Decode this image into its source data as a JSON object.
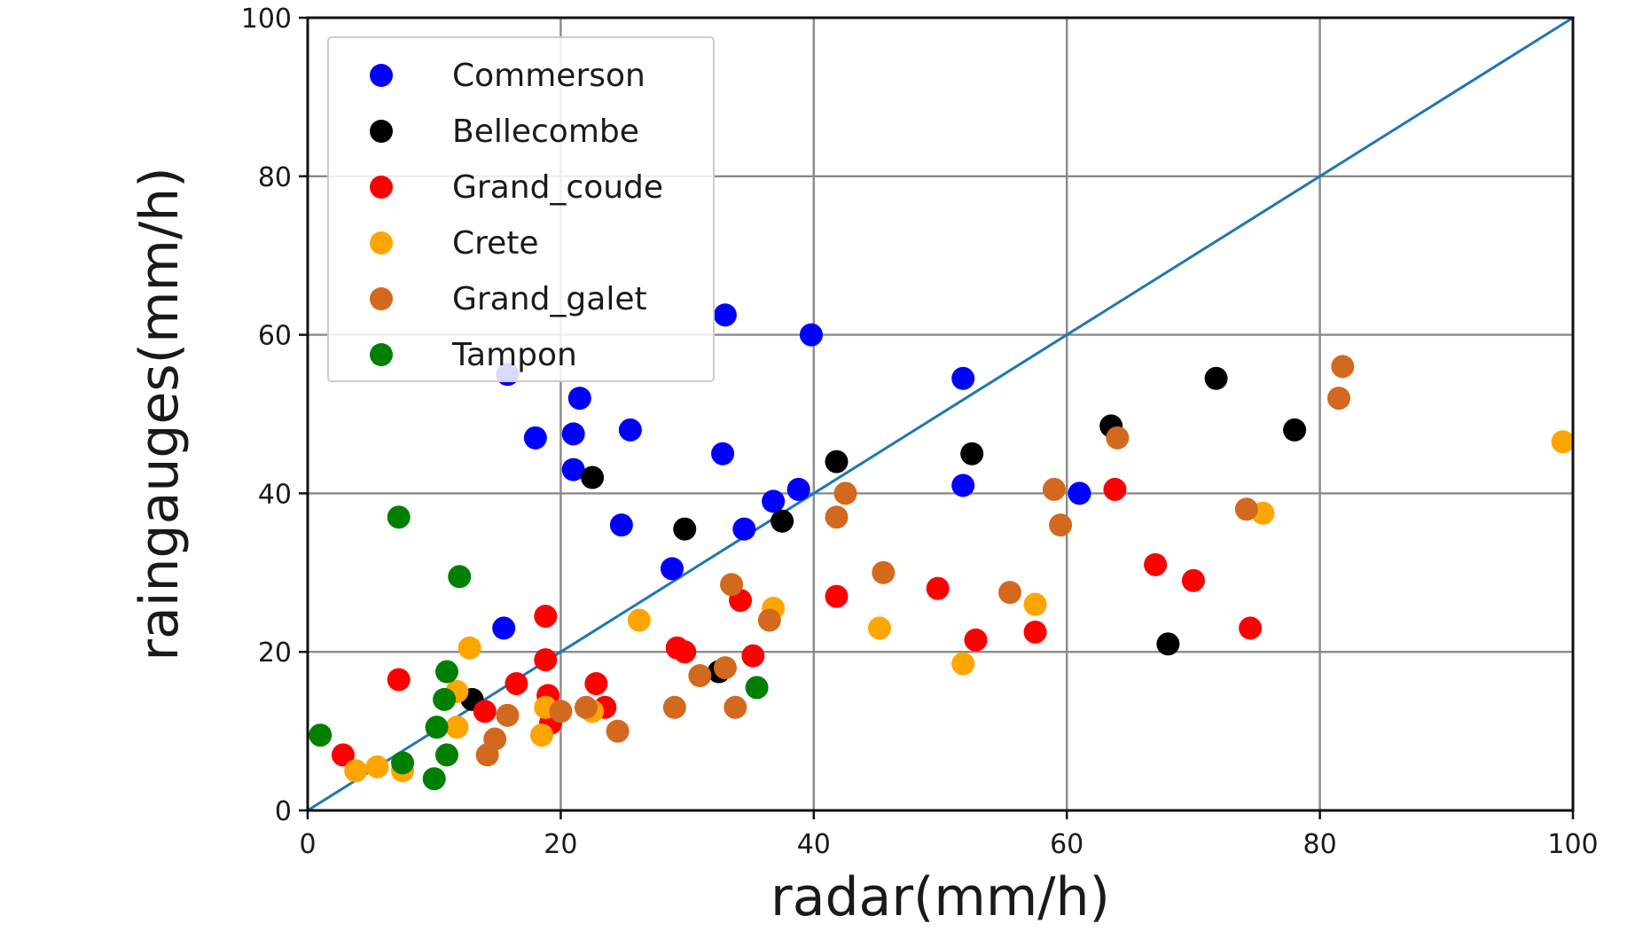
{
  "chart_data": {
    "type": "scatter",
    "xlabel": "radar(mm/h)",
    "ylabel": "raingauges(mm/h)",
    "xlim": [
      0,
      100
    ],
    "ylim": [
      0,
      100
    ],
    "xticks": [
      "0",
      "20",
      "40",
      "60",
      "80",
      "100"
    ],
    "yticks": [
      "0",
      "20",
      "40",
      "60",
      "80",
      "100"
    ],
    "grid": true,
    "legend_position": "top-left",
    "reference_line": {
      "from": [
        0,
        0
      ],
      "to": [
        100,
        100
      ],
      "color": "#1f77b4"
    },
    "series": [
      {
        "name": "Commerson",
        "color": "#0000ff",
        "points": [
          [
            15.8,
            55
          ],
          [
            18,
            47
          ],
          [
            21,
            47.5
          ],
          [
            21.5,
            52
          ],
          [
            21,
            43
          ],
          [
            25.5,
            48
          ],
          [
            24.8,
            36
          ],
          [
            32.8,
            45
          ],
          [
            28.8,
            30.5
          ],
          [
            33,
            62.5
          ],
          [
            34.5,
            35.5
          ],
          [
            36.8,
            39
          ],
          [
            38.8,
            40.5
          ],
          [
            39.8,
            60
          ],
          [
            51.8,
            54.5
          ],
          [
            51.8,
            41
          ],
          [
            61,
            40
          ],
          [
            15.5,
            23
          ]
        ]
      },
      {
        "name": "Bellecombe",
        "color": "#000000",
        "points": [
          [
            22.5,
            42
          ],
          [
            29.8,
            35.5
          ],
          [
            37.5,
            36.5
          ],
          [
            41.8,
            44
          ],
          [
            52.5,
            45
          ],
          [
            63.5,
            48.5
          ],
          [
            71.8,
            54.5
          ],
          [
            78,
            48
          ],
          [
            68,
            21
          ],
          [
            32.5,
            17.5
          ],
          [
            13,
            14
          ]
        ]
      },
      {
        "name": "Grand_coude",
        "color": "#ff0000",
        "points": [
          [
            2.8,
            7
          ],
          [
            7.2,
            16.5
          ],
          [
            14,
            12.5
          ],
          [
            16.5,
            16
          ],
          [
            18.8,
            24.5
          ],
          [
            18.8,
            19
          ],
          [
            19,
            14.5
          ],
          [
            19.2,
            11
          ],
          [
            22.8,
            16
          ],
          [
            23.5,
            13
          ],
          [
            29.2,
            20.5
          ],
          [
            29.8,
            20
          ],
          [
            34.2,
            26.5
          ],
          [
            35.2,
            19.5
          ],
          [
            41.8,
            27
          ],
          [
            49.8,
            28
          ],
          [
            52.8,
            21.5
          ],
          [
            57.5,
            22.5
          ],
          [
            63.8,
            40.5
          ],
          [
            67,
            31
          ],
          [
            70,
            29
          ],
          [
            74.5,
            23
          ]
        ]
      },
      {
        "name": "Crete",
        "color": "#ffa500",
        "points": [
          [
            3.8,
            5
          ],
          [
            5.5,
            5.5
          ],
          [
            7.5,
            5
          ],
          [
            11.8,
            10.5
          ],
          [
            11.8,
            15
          ],
          [
            12.8,
            20.5
          ],
          [
            18.5,
            9.5
          ],
          [
            18.8,
            13
          ],
          [
            22.5,
            12.5
          ],
          [
            26.2,
            24
          ],
          [
            36.8,
            25.5
          ],
          [
            45.2,
            23
          ],
          [
            51.8,
            18.5
          ],
          [
            57.5,
            26
          ],
          [
            75.5,
            37.5
          ],
          [
            99.2,
            46.5
          ]
        ]
      },
      {
        "name": "Grand_galet",
        "color": "#d2691e",
        "points": [
          [
            14.2,
            7
          ],
          [
            14.8,
            9
          ],
          [
            15.8,
            12
          ],
          [
            20,
            12.5
          ],
          [
            22,
            13
          ],
          [
            24.5,
            10
          ],
          [
            29,
            13
          ],
          [
            31,
            17
          ],
          [
            33,
            18
          ],
          [
            33.5,
            28.5
          ],
          [
            33.8,
            13
          ],
          [
            36.5,
            24
          ],
          [
            41.8,
            37
          ],
          [
            42.5,
            40
          ],
          [
            45.5,
            30
          ],
          [
            55.5,
            27.5
          ],
          [
            59,
            40.5
          ],
          [
            59.5,
            36
          ],
          [
            64,
            47
          ],
          [
            74.2,
            38
          ],
          [
            81.5,
            52
          ],
          [
            81.8,
            56
          ]
        ]
      },
      {
        "name": "Tampon",
        "color": "#008000",
        "points": [
          [
            1,
            9.5
          ],
          [
            7.2,
            37
          ],
          [
            7.5,
            6
          ],
          [
            10,
            4
          ],
          [
            10.2,
            10.5
          ],
          [
            10.8,
            14
          ],
          [
            11,
            7
          ],
          [
            11,
            17.5
          ],
          [
            12,
            29.5
          ],
          [
            35.5,
            15.5
          ]
        ]
      }
    ]
  }
}
